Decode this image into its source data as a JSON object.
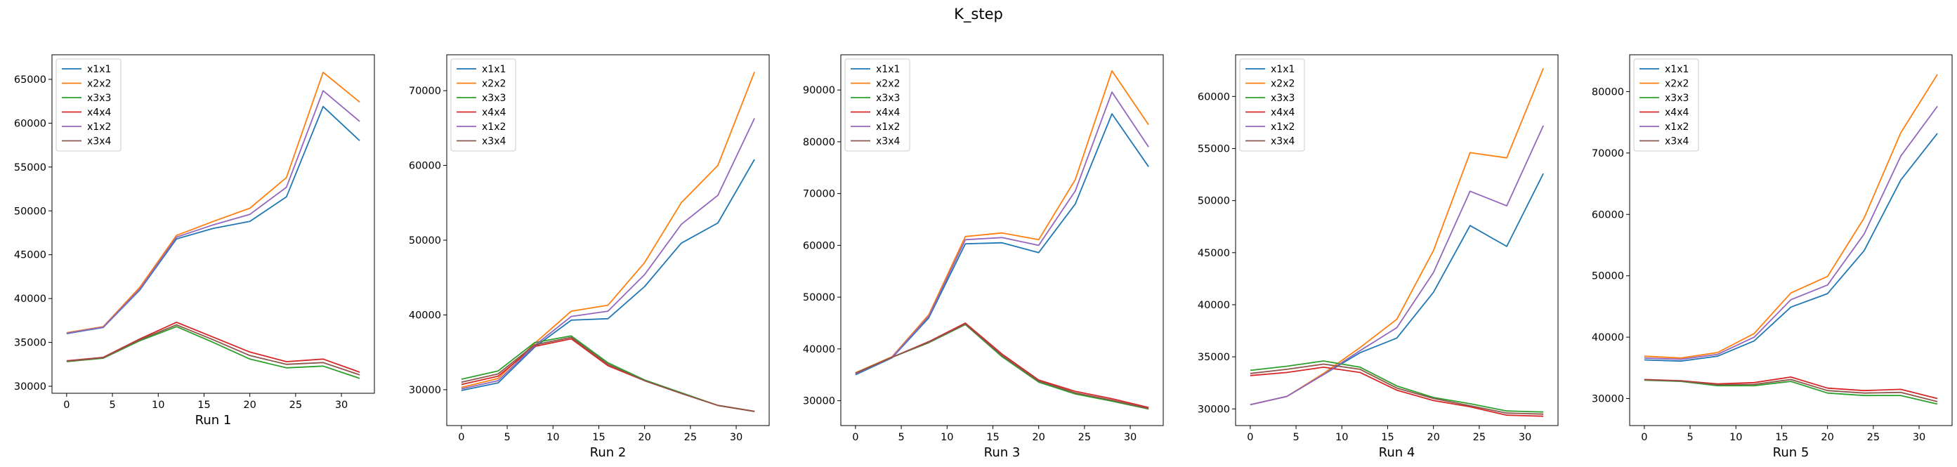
{
  "figure": {
    "title": "K_step"
  },
  "colors": {
    "x1x1": "#1f77b4",
    "x2x2": "#ff7f0e",
    "x3x3": "#2ca02c",
    "x4x4": "#d62728",
    "x1x2": "#9467bd",
    "x3x4": "#8c564b"
  },
  "chart_data": [
    {
      "type": "line",
      "title": "",
      "xlabel": "Run 1",
      "ylabel": "",
      "legend": "top-left",
      "grid": false,
      "x": [
        0,
        4,
        8,
        12,
        16,
        20,
        24,
        28,
        32
      ],
      "xticks": [
        0,
        5,
        10,
        15,
        20,
        25,
        30
      ],
      "yticks": [
        30000,
        35000,
        40000,
        45000,
        50000,
        55000,
        60000,
        65000
      ],
      "xlim": [
        -1.6,
        33.6
      ],
      "ylim": [
        29200,
        67800
      ],
      "series": [
        {
          "name": "x1x1",
          "values": [
            36000,
            36700,
            41000,
            46800,
            48000,
            48800,
            51600,
            61900,
            58000
          ]
        },
        {
          "name": "x2x2",
          "values": [
            36100,
            36800,
            41300,
            47200,
            48800,
            50300,
            53800,
            65800,
            62400
          ]
        },
        {
          "name": "x3x3",
          "values": [
            32800,
            33200,
            35200,
            36800,
            35000,
            33100,
            32100,
            32300,
            30900
          ]
        },
        {
          "name": "x4x4",
          "values": [
            32900,
            33300,
            35400,
            37300,
            35600,
            33900,
            32800,
            33100,
            31600
          ]
        },
        {
          "name": "x1x2",
          "values": [
            36050,
            36750,
            41100,
            47000,
            48400,
            49600,
            52700,
            63700,
            60200
          ]
        },
        {
          "name": "x3x4",
          "values": [
            32850,
            33250,
            35300,
            37000,
            35300,
            33500,
            32500,
            32700,
            31300
          ]
        }
      ]
    },
    {
      "type": "line",
      "title": "",
      "xlabel": "Run 2",
      "ylabel": "",
      "legend": "top-left",
      "grid": false,
      "x": [
        0,
        4,
        8,
        12,
        16,
        20,
        24,
        28,
        32
      ],
      "xticks": [
        0,
        5,
        10,
        15,
        20,
        25,
        30
      ],
      "yticks": [
        30000,
        40000,
        50000,
        60000,
        70000
      ],
      "xlim": [
        -1.6,
        33.6
      ],
      "ylim": [
        25200,
        74800
      ],
      "series": [
        {
          "name": "x1x1",
          "values": [
            29900,
            30900,
            35700,
            39300,
            39500,
            43800,
            49600,
            52300,
            60800
          ]
        },
        {
          "name": "x2x2",
          "values": [
            30300,
            31500,
            36200,
            40500,
            41300,
            47000,
            55000,
            60000,
            72500
          ]
        },
        {
          "name": "x3x3",
          "values": [
            31400,
            32500,
            36300,
            37200,
            33600,
            31300,
            29600,
            27900,
            27100
          ]
        },
        {
          "name": "x4x4",
          "values": [
            30700,
            31800,
            35800,
            36800,
            33200,
            31200,
            29500,
            27900,
            27100
          ]
        },
        {
          "name": "x1x2",
          "values": [
            30100,
            31200,
            35900,
            39800,
            40500,
            45400,
            52100,
            56000,
            66300
          ]
        },
        {
          "name": "x3x4",
          "values": [
            31000,
            32100,
            36000,
            37000,
            33400,
            31200,
            29500,
            27900,
            27100
          ]
        }
      ]
    },
    {
      "type": "line",
      "title": "",
      "xlabel": "Run 3",
      "ylabel": "",
      "legend": "top-left",
      "grid": false,
      "x": [
        0,
        4,
        8,
        12,
        16,
        20,
        24,
        28,
        32
      ],
      "xticks": [
        0,
        5,
        10,
        15,
        20,
        25,
        30
      ],
      "yticks": [
        30000,
        40000,
        50000,
        60000,
        70000,
        80000,
        90000
      ],
      "xlim": [
        -1.6,
        33.6
      ],
      "ylim": [
        25200,
        96800
      ],
      "series": [
        {
          "name": "x1x1",
          "values": [
            35000,
            38300,
            46000,
            60300,
            60500,
            58600,
            68000,
            85400,
            75200
          ]
        },
        {
          "name": "x2x2",
          "values": [
            35400,
            38500,
            46600,
            61700,
            62400,
            61100,
            72700,
            93700,
            83300
          ]
        },
        {
          "name": "x3x3",
          "values": [
            35300,
            38400,
            41200,
            44700,
            38500,
            33600,
            31300,
            29900,
            28400
          ]
        },
        {
          "name": "x4x4",
          "values": [
            35300,
            38400,
            41400,
            45000,
            39000,
            34000,
            31800,
            30400,
            28700
          ]
        },
        {
          "name": "x1x2",
          "values": [
            35200,
            38400,
            46300,
            61100,
            61500,
            60000,
            70500,
            89600,
            79000
          ]
        },
        {
          "name": "x3x4",
          "values": [
            35300,
            38400,
            41300,
            44800,
            38700,
            33800,
            31500,
            30100,
            28500
          ]
        }
      ]
    },
    {
      "type": "line",
      "title": "",
      "xlabel": "Run 4",
      "ylabel": "",
      "legend": "top-left",
      "grid": false,
      "x": [
        0,
        4,
        8,
        12,
        16,
        20,
        24,
        28,
        32
      ],
      "xticks": [
        0,
        5,
        10,
        15,
        20,
        25,
        30
      ],
      "yticks": [
        30000,
        35000,
        40000,
        45000,
        50000,
        55000,
        60000
      ],
      "xlim": [
        -1.6,
        33.6
      ],
      "ylim": [
        28400,
        64000
      ],
      "series": [
        {
          "name": "x1x1",
          "values": [
            30400,
            31200,
            33300,
            35400,
            36800,
            41200,
            47600,
            45600,
            52600
          ]
        },
        {
          "name": "x2x2",
          "values": [
            30400,
            31200,
            33400,
            35900,
            38600,
            45200,
            54600,
            54100,
            62700
          ]
        },
        {
          "name": "x3x3",
          "values": [
            33700,
            34100,
            34600,
            34000,
            32200,
            31100,
            30500,
            29800,
            29700
          ]
        },
        {
          "name": "x4x4",
          "values": [
            33200,
            33500,
            34000,
            33500,
            31800,
            30800,
            30200,
            29400,
            29300
          ]
        },
        {
          "name": "x1x2",
          "values": [
            30400,
            31200,
            33300,
            35600,
            37800,
            43100,
            50900,
            49500,
            57200
          ]
        },
        {
          "name": "x3x4",
          "values": [
            33400,
            33800,
            34300,
            33800,
            32000,
            31000,
            30300,
            29600,
            29500
          ]
        }
      ]
    },
    {
      "type": "line",
      "title": "",
      "xlabel": "Run 5",
      "ylabel": "",
      "legend": "top-left",
      "grid": false,
      "x": [
        0,
        4,
        8,
        12,
        16,
        20,
        24,
        28,
        32
      ],
      "xticks": [
        0,
        5,
        10,
        15,
        20,
        25,
        30
      ],
      "yticks": [
        30000,
        40000,
        50000,
        60000,
        70000,
        80000
      ],
      "xlim": [
        -1.6,
        33.6
      ],
      "ylim": [
        25600,
        86000
      ],
      "series": [
        {
          "name": "x1x1",
          "values": [
            36300,
            36100,
            36900,
            39400,
            44900,
            47100,
            54100,
            65600,
            73200
          ]
        },
        {
          "name": "x2x2",
          "values": [
            36900,
            36600,
            37500,
            40600,
            47200,
            49900,
            59400,
            73300,
            82800
          ]
        },
        {
          "name": "x3x3",
          "values": [
            33000,
            32800,
            32100,
            32100,
            32800,
            30900,
            30500,
            30500,
            29100
          ]
        },
        {
          "name": "x4x4",
          "values": [
            33100,
            32900,
            32400,
            32600,
            33500,
            31700,
            31300,
            31500,
            30000
          ]
        },
        {
          "name": "x1x2",
          "values": [
            36600,
            36400,
            37200,
            40000,
            46100,
            48500,
            56800,
            69500,
            77600
          ]
        },
        {
          "name": "x3x4",
          "values": [
            33050,
            32850,
            32250,
            32300,
            33100,
            31300,
            30900,
            31000,
            29500
          ]
        }
      ]
    }
  ]
}
